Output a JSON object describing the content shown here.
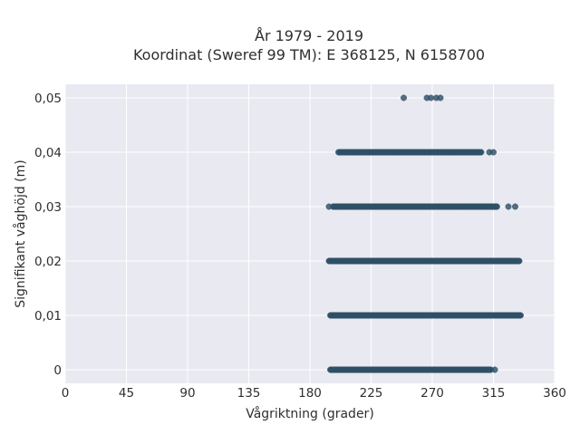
{
  "chart_data": {
    "type": "scatter",
    "title_lines": [
      "År 1979 - 2019",
      "Koordinat (Sweref 99 TM): E 368125, N 6158700"
    ],
    "xlabel": "Vågriktning (grader)",
    "ylabel": "Signifikant våghöjd (m)",
    "xlim": [
      0,
      360
    ],
    "ylim": [
      -0.0025,
      0.0525
    ],
    "x_ticks": [
      0,
      45,
      90,
      135,
      180,
      225,
      270,
      315,
      360
    ],
    "x_tick_labels": [
      "0",
      "45",
      "90",
      "135",
      "180",
      "225",
      "270",
      "315",
      "360"
    ],
    "y_ticks": [
      0,
      0.01,
      0.02,
      0.03,
      0.04,
      0.05
    ],
    "y_tick_labels": [
      "0",
      "0,01",
      "0,02",
      "0,03",
      "0,04",
      "0,05"
    ],
    "grid": true,
    "legend": "none",
    "point_color": "#2f5166",
    "series": [
      {
        "points": [
          {
            "y": 0,
            "x_from": 195,
            "x_to": 313,
            "step": 0.5
          },
          {
            "y": 0,
            "x": 316
          },
          {
            "y": 0.01,
            "x_from": 195,
            "x_to": 335,
            "step": 0.5
          },
          {
            "y": 0.02,
            "x_from": 194,
            "x_to": 334,
            "step": 0.5
          },
          {
            "y": 0.03,
            "x_from": 197,
            "x_to": 318,
            "step": 0.6
          },
          {
            "y": 0.03,
            "x": 194
          },
          {
            "y": 0.03,
            "x": 326
          },
          {
            "y": 0.03,
            "x": 331
          },
          {
            "y": 0.04,
            "x_from": 201,
            "x_to": 306,
            "step": 0.7
          },
          {
            "y": 0.04,
            "x": 312
          },
          {
            "y": 0.04,
            "x": 315
          },
          {
            "y": 0.05,
            "x": 249
          },
          {
            "y": 0.05,
            "x": 266
          },
          {
            "y": 0.05,
            "x": 269
          },
          {
            "y": 0.05,
            "x": 273
          },
          {
            "y": 0.05,
            "x": 276
          }
        ]
      }
    ]
  }
}
